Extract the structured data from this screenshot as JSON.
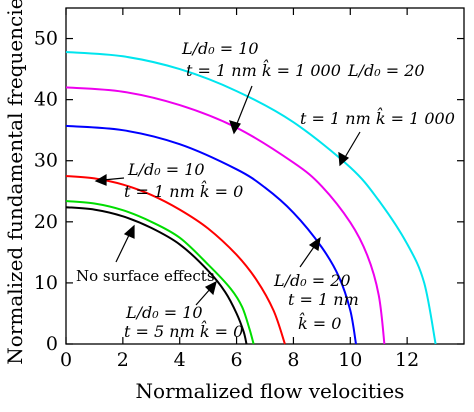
{
  "chart_data": {
    "type": "line",
    "xlabel": "Normalized flow velocities",
    "ylabel": "Normalized fundamental frequencies",
    "xlim": [
      0,
      14
    ],
    "ylim": [
      0,
      55
    ],
    "xticks": [
      0,
      2,
      4,
      6,
      8,
      10,
      12
    ],
    "yticks": [
      0,
      10,
      20,
      30,
      40,
      50
    ],
    "grid": false,
    "legend": "none",
    "series": [
      {
        "color": "#000000",
        "x": [
          0,
          1,
          2,
          3,
          4,
          5,
          5.6,
          6.0,
          6.25,
          6.35
        ],
        "y": [
          22.4,
          22.0,
          20.9,
          19.0,
          16.3,
          12.0,
          8.5,
          5.0,
          2.0,
          0
        ]
      },
      {
        "color": "#00dd00",
        "x": [
          0,
          1,
          2,
          3,
          4,
          5,
          5.8,
          6.2,
          6.45,
          6.6
        ],
        "y": [
          23.4,
          23.0,
          21.9,
          20.0,
          17.4,
          13.0,
          9.0,
          6.0,
          2.5,
          0
        ]
      },
      {
        "color": "#ff0000",
        "x": [
          0,
          1,
          2,
          3,
          4,
          5,
          6,
          6.7,
          7.3,
          7.7
        ],
        "y": [
          27.5,
          27.1,
          26.1,
          24.4,
          22.0,
          18.9,
          14.6,
          10.5,
          5.5,
          0
        ]
      },
      {
        "color": "#0000ff",
        "x": [
          0,
          2,
          4,
          6,
          7,
          8,
          9,
          9.6,
          10.0,
          10.2
        ],
        "y": [
          35.7,
          35.0,
          32.7,
          28.6,
          25.6,
          21.5,
          15.8,
          11.0,
          5.5,
          0
        ]
      },
      {
        "color": "#ee00ee",
        "x": [
          0,
          2,
          4,
          6,
          8,
          9,
          10,
          10.6,
          11.0,
          11.2
        ],
        "y": [
          42.0,
          41.3,
          39.1,
          35.4,
          29.7,
          25.8,
          19.9,
          14.5,
          8.0,
          0
        ]
      },
      {
        "color": "#00e5ee",
        "x": [
          0,
          2,
          4,
          6,
          8,
          10,
          11,
          12,
          12.6,
          13.0
        ],
        "y": [
          47.8,
          47.1,
          45.0,
          41.4,
          36.3,
          28.9,
          23.5,
          16.4,
          10.0,
          0
        ]
      }
    ],
    "annotations": [
      {
        "id": "a1",
        "lines": [
          "L/d₀ = 10",
          "t = 1 nm  k̂ = 1 000"
        ]
      },
      {
        "id": "a2",
        "lines": [
          "L/d₀ = 20"
        ]
      },
      {
        "id": "a3",
        "lines": [
          "t = 1 nm  k̂ = 1 000"
        ]
      },
      {
        "id": "a4",
        "lines": [
          "L/d₀ = 10",
          "t = 1 nm  k̂ = 0"
        ]
      },
      {
        "id": "a5",
        "lines": [
          "No surface effects"
        ]
      },
      {
        "id": "a6",
        "lines": [
          "L/d₀ = 10",
          "t = 5 nm  k̂ = 0"
        ]
      },
      {
        "id": "a7",
        "lines": [
          "L/d₀ = 20",
          "t = 1 nm",
          "k̂ = 0"
        ]
      }
    ]
  }
}
